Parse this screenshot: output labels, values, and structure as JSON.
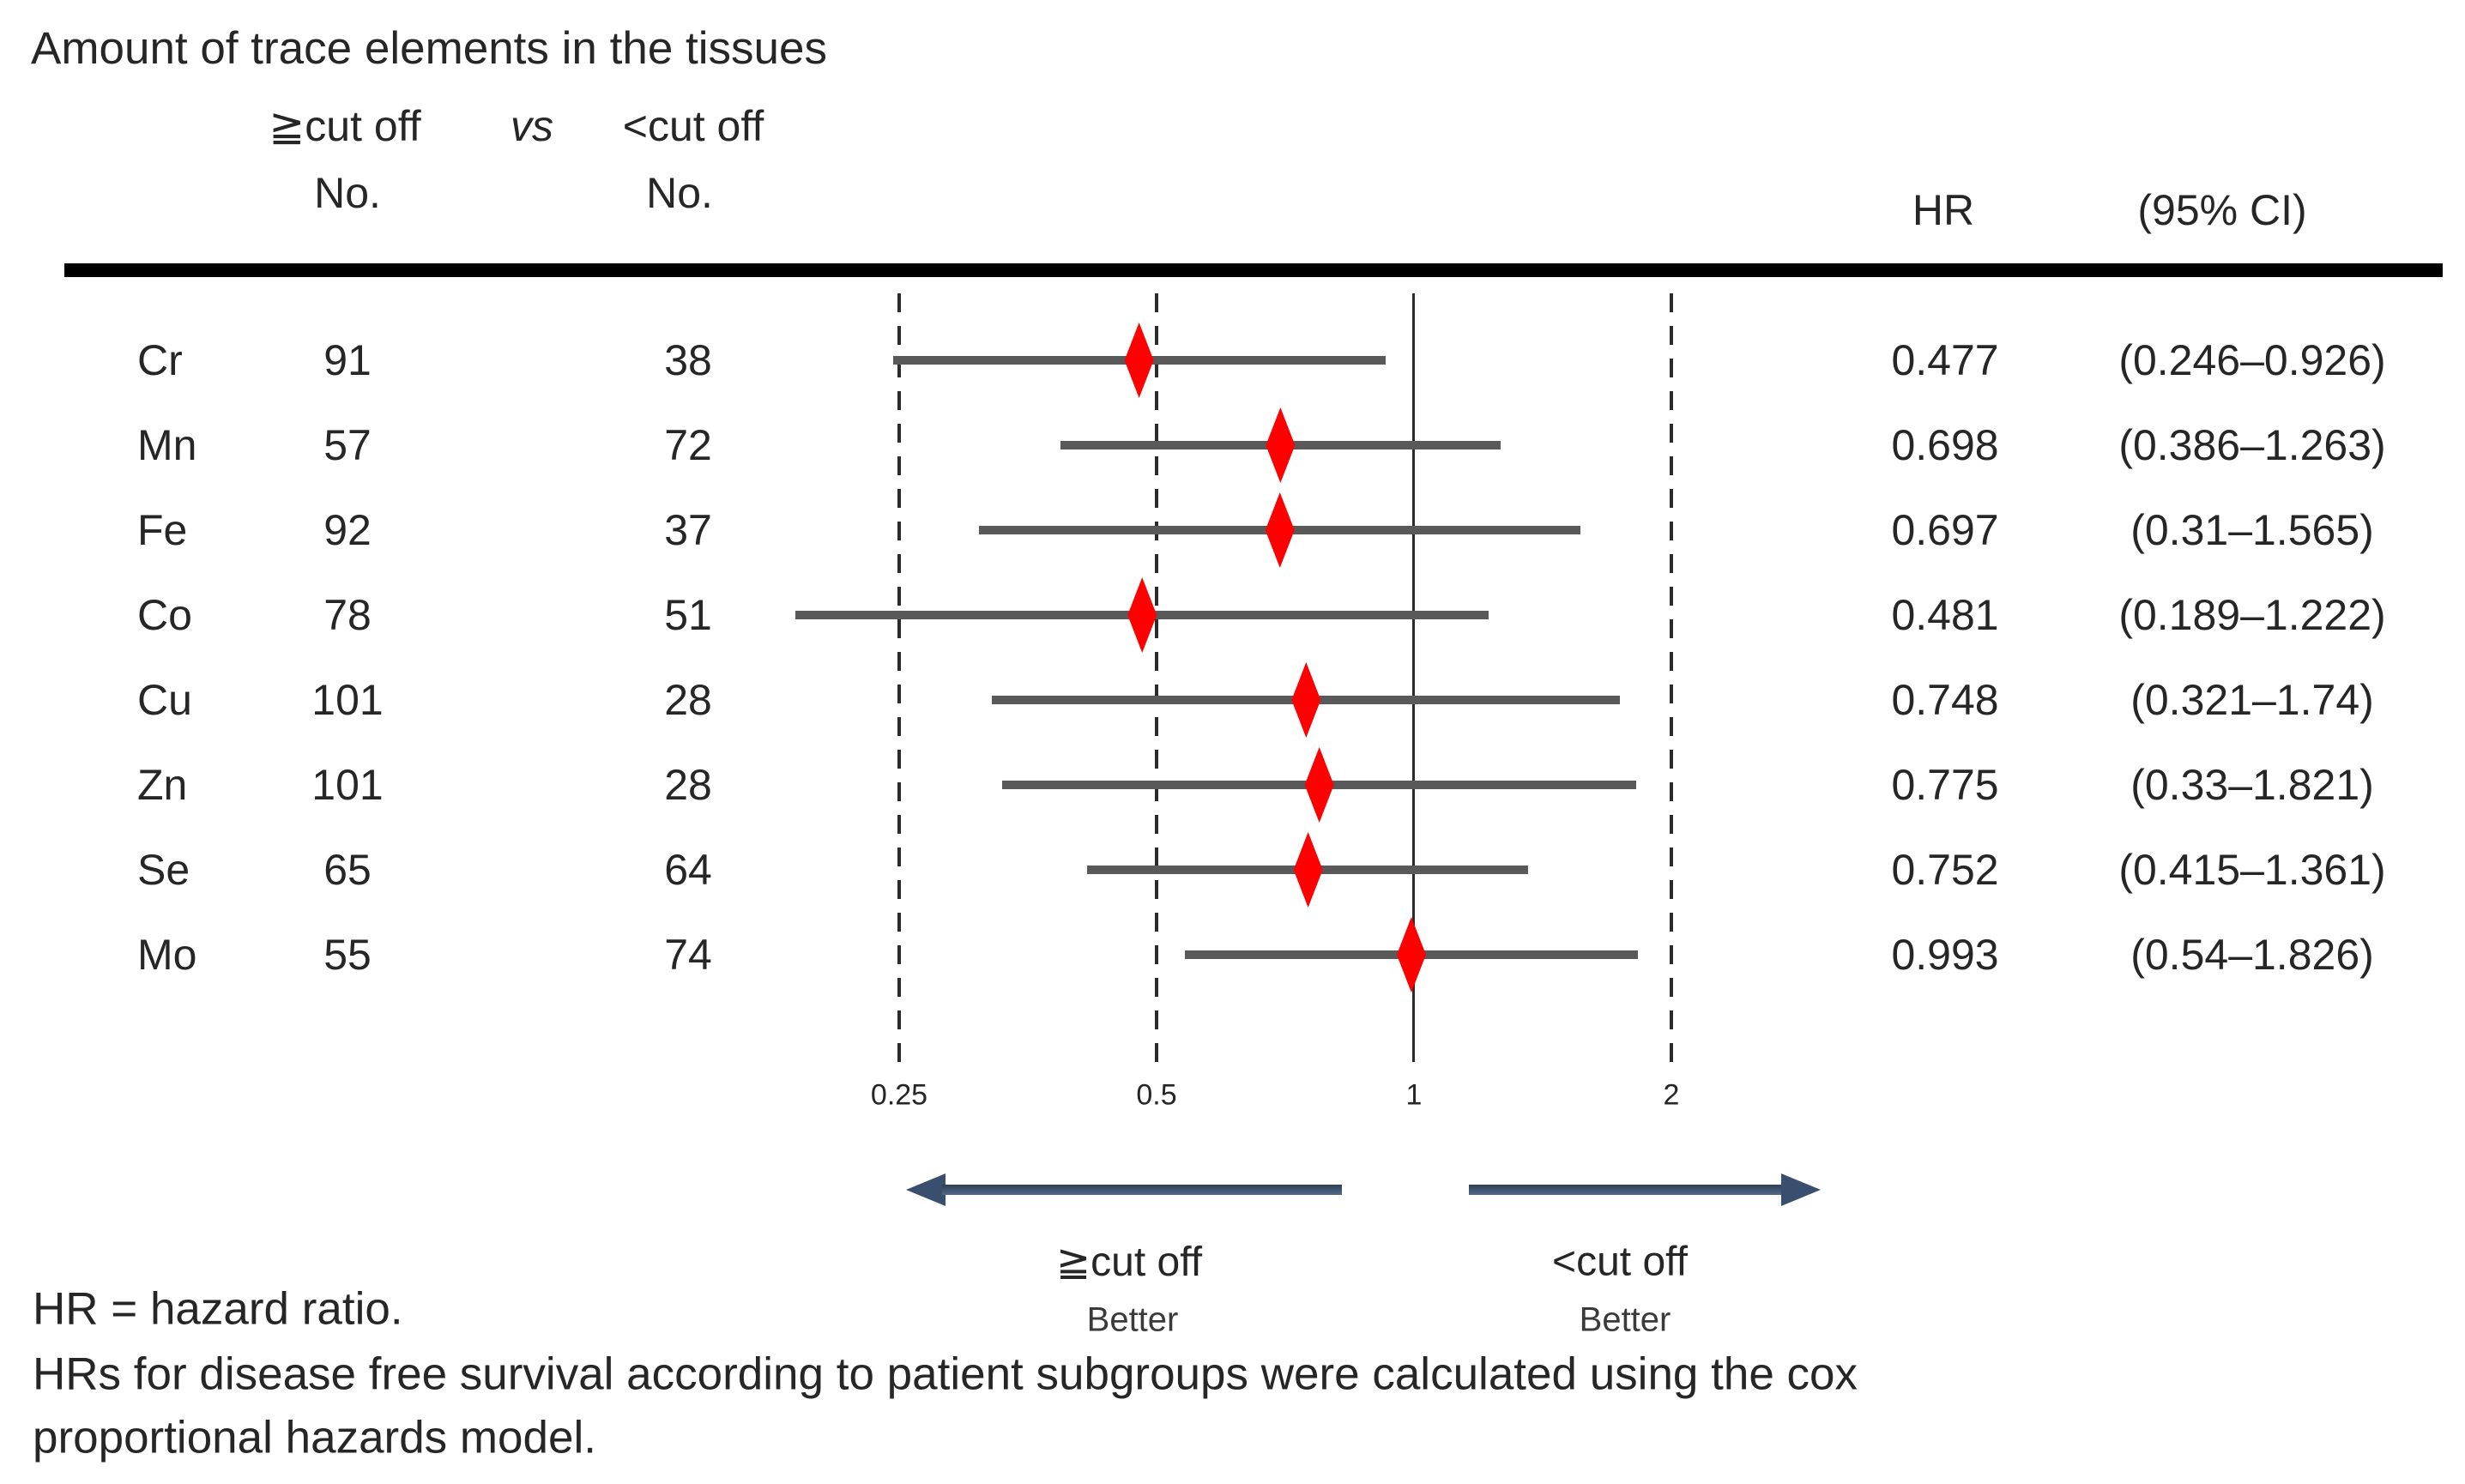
{
  "title": "Amount of trace elements in the tissues",
  "header": {
    "group1": "≧cut off",
    "vs": "vs",
    "group2": "<cut off",
    "no1": "No.",
    "no2": "No.",
    "hr": "HR",
    "ci": "(95% CI)"
  },
  "chart_data": {
    "type": "forest",
    "x_scale": "log2",
    "axis_ticks": [
      0.25,
      0.5,
      1,
      2
    ],
    "axis_tick_labels": [
      "0.25",
      "0.5",
      "1",
      "2"
    ],
    "reference_line": 1,
    "marker": "diamond",
    "marker_color": "#fe0000",
    "ci_color": "#595959",
    "rows": [
      {
        "element": "Cr",
        "n_ge": "91",
        "n_lt": "38",
        "hr": 0.477,
        "lo": 0.246,
        "hi": 0.926,
        "hr_text": "0.477",
        "ci_text": "(0.246–0.926)"
      },
      {
        "element": "Mn",
        "n_ge": "57",
        "n_lt": "72",
        "hr": 0.698,
        "lo": 0.386,
        "hi": 1.263,
        "hr_text": "0.698",
        "ci_text": "(0.386–1.263)"
      },
      {
        "element": "Fe",
        "n_ge": "92",
        "n_lt": "37",
        "hr": 0.697,
        "lo": 0.31,
        "hi": 1.565,
        "hr_text": "0.697",
        "ci_text": "(0.31–1.565)"
      },
      {
        "element": "Co",
        "n_ge": "78",
        "n_lt": "51",
        "hr": 0.481,
        "lo": 0.189,
        "hi": 1.222,
        "hr_text": "0.481",
        "ci_text": "(0.189–1.222)"
      },
      {
        "element": "Cu",
        "n_ge": "101",
        "n_lt": "28",
        "hr": 0.748,
        "lo": 0.321,
        "hi": 1.74,
        "hr_text": "0.748",
        "ci_text": "(0.321–1.74)"
      },
      {
        "element": "Zn",
        "n_ge": "101",
        "n_lt": "28",
        "hr": 0.775,
        "lo": 0.33,
        "hi": 1.821,
        "hr_text": "0.775",
        "ci_text": "(0.33–1.821)"
      },
      {
        "element": "Se",
        "n_ge": "65",
        "n_lt": "64",
        "hr": 0.752,
        "lo": 0.415,
        "hi": 1.361,
        "hr_text": "0.752",
        "ci_text": "(0.415–1.361)"
      },
      {
        "element": "Mo",
        "n_ge": "55",
        "n_lt": "74",
        "hr": 0.993,
        "lo": 0.54,
        "hi": 1.826,
        "hr_text": "0.993",
        "ci_text": "(0.54–1.826)"
      }
    ]
  },
  "legend": {
    "left_label": "≧cut off",
    "left_sub": "Better",
    "right_label": "<cut off",
    "right_sub": "Better"
  },
  "footnotes": [
    "HR = hazard ratio.",
    "HRs for disease free survival according to patient subgroups were calculated using the cox",
    "proportional hazards model."
  ]
}
